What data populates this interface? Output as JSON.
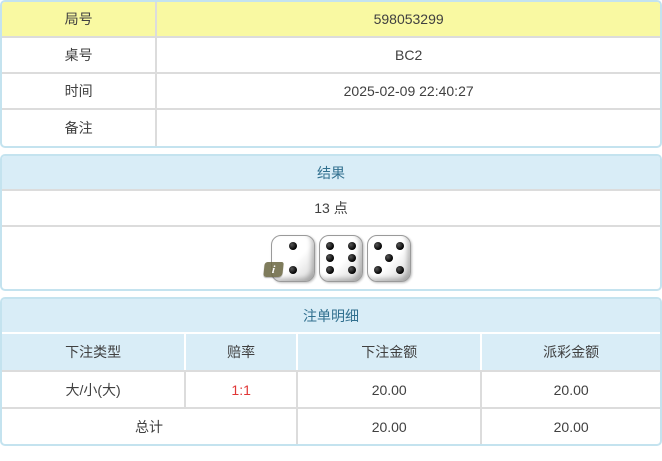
{
  "colors": {
    "yellow_highlight": "#f9f9a2",
    "header_bg": "#d9edf7",
    "header_text": "#31708f",
    "panel_border": "#c4e3ef",
    "cell_border": "#dcdcdc",
    "body_text": "#404040",
    "odds_red": "#e03636"
  },
  "info_table": {
    "rows": [
      {
        "label": "局号",
        "value": "598053299",
        "highlight": true
      },
      {
        "label": "桌号",
        "value": "BC2",
        "highlight": false
      },
      {
        "label": "时间",
        "value": "2025-02-09 22:40:27",
        "highlight": false
      },
      {
        "label": "备注",
        "value": "",
        "highlight": false
      }
    ]
  },
  "result_panel": {
    "title": "结果",
    "points": "13 点",
    "dice": [
      2,
      6,
      5
    ],
    "info_icon": "i"
  },
  "bets_panel": {
    "title": "注单明细",
    "columns": [
      "下注类型",
      "赔率",
      "下注金额",
      "派彩金额"
    ],
    "rows": [
      {
        "type": "大/小(大)",
        "odds": "1:1",
        "bet": "20.00",
        "payout": "20.00"
      }
    ],
    "total": {
      "label": "总计",
      "bet": "20.00",
      "payout": "20.00"
    }
  }
}
